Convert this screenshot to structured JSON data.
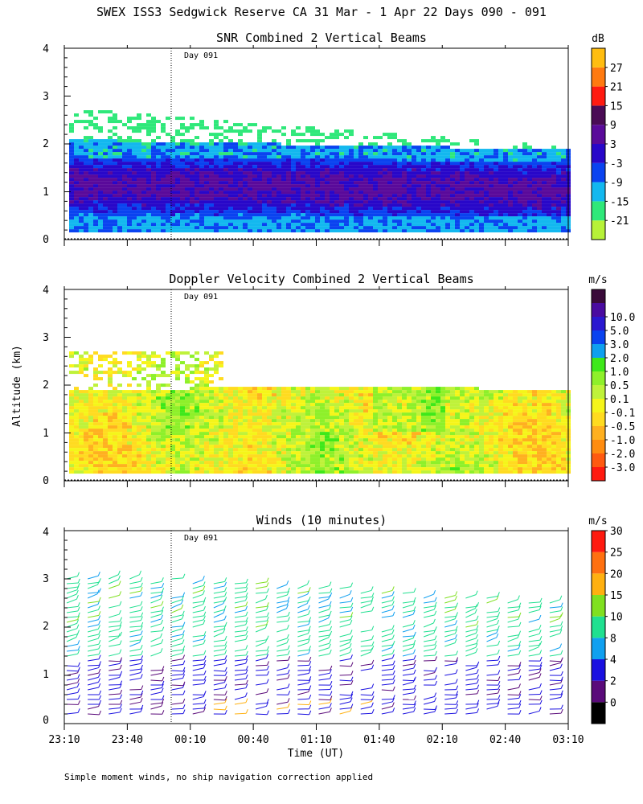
{
  "figure_title": "SWEX ISS3 Sedgwick Reserve CA  31 Mar -  1 Apr 22 Days 090 - 091",
  "footnote": "Simple moment winds, no ship navigation correction applied",
  "colors": {
    "snr": [
      "#b7f238",
      "#2fe87a",
      "#13b8ef",
      "#0a43f0",
      "#2807c9",
      "#5a0a9a",
      "#4a0b55",
      "#ff1a10",
      "#ff7a10",
      "#ffbd10"
    ],
    "doppler": [
      "#ff1a10",
      "#ff5a10",
      "#ff8c10",
      "#ffb020",
      "#ffdb20",
      "#f5f51a",
      "#bff23a",
      "#8ef02a",
      "#3ee81a",
      "#0fa0ef",
      "#0a43f0",
      "#2a18d0",
      "#4a0ba0",
      "#3a0a3a"
    ],
    "winds": [
      "#000000",
      "#5a0a7a",
      "#1a10e0",
      "#10a0f0",
      "#20e090",
      "#80e020",
      "#ffb010",
      "#ff7010",
      "#ff1a10"
    ]
  },
  "chart_data": [
    {
      "type": "heatmap",
      "title": "SNR Combined 2 Vertical Beams",
      "ylabel": "Altitude (km)",
      "ylim": [
        0,
        4
      ],
      "y_ticks": [
        "0",
        "1",
        "2",
        "3",
        "4"
      ],
      "xlim": [
        "23:10",
        "03:10"
      ],
      "annotation": "Day 091",
      "annotation_time": "00:00",
      "colorbar": {
        "unit": "dB",
        "labels": [
          "-21",
          "-15",
          "-9",
          "-3",
          "3",
          "9",
          "15",
          "21",
          "27"
        ]
      }
    },
    {
      "type": "heatmap",
      "title": "Doppler Velocity Combined 2 Vertical Beams",
      "ylabel": "Altitude (km)",
      "ylim": [
        0,
        4
      ],
      "y_ticks": [
        "0",
        "1",
        "2",
        "3",
        "4"
      ],
      "xlim": [
        "23:10",
        "03:10"
      ],
      "annotation": "Day 091",
      "annotation_time": "00:00",
      "colorbar": {
        "unit": "m/s",
        "labels": [
          "-3.0",
          "-2.0",
          "-1.0",
          "-0.5",
          "-0.1",
          "0.1",
          "0.5",
          "1.0",
          "2.0",
          "3.0",
          "5.0",
          "10.0"
        ]
      }
    },
    {
      "type": "scatter",
      "title": "Winds (10 minutes)",
      "ylabel": "Altitude (km)",
      "ylim": [
        0,
        4
      ],
      "y_ticks": [
        "0",
        "1",
        "2",
        "3",
        "4"
      ],
      "xlabel": "Time (UT)",
      "x_ticks": [
        "23:10",
        "23:40",
        "00:10",
        "00:40",
        "01:10",
        "01:40",
        "02:10",
        "02:40",
        "03:10"
      ],
      "annotation": "Day 091",
      "annotation_time": "00:00",
      "colorbar": {
        "unit": "m/s",
        "labels": [
          "0",
          "2",
          "4",
          "8",
          "10",
          "15",
          "20",
          "25",
          "30"
        ]
      }
    }
  ]
}
